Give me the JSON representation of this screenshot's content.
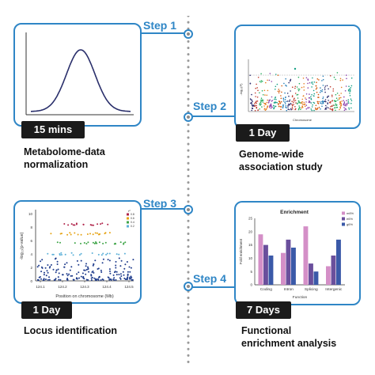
{
  "steps": [
    {
      "label": "Step 1",
      "duration": "15 mins",
      "caption_line1": "Metabolome-data",
      "caption_line2": "normalization"
    },
    {
      "label": "Step 2",
      "duration": "1 Day",
      "caption_line1": "Genome-wide",
      "caption_line2": "association study"
    },
    {
      "label": "Step 3",
      "duration": "1 Day",
      "caption_line1": "Locus identification",
      "caption_line2": ""
    },
    {
      "label": "Step 4",
      "duration": "7 Days",
      "caption_line1": "Functional",
      "caption_line2": "enrichment analysis"
    }
  ],
  "manhattan": {
    "ylabel": "-log₁₀(P)",
    "xlabel": "Chromosome"
  },
  "locus": {
    "ylabel": "-log₁₀(p-value)",
    "xlabel": "Position on chromosome (Mb)",
    "x_ticks": [
      "124.1",
      "124.2",
      "124.3",
      "124.4",
      "124.5"
    ],
    "y_ticks": [
      "0",
      "2",
      "4",
      "6",
      "8",
      "10"
    ],
    "legend_title": "r²",
    "legend": [
      "0.8",
      "0.6",
      "0.4",
      "0.2"
    ]
  },
  "chart_data": [
    {
      "type": "bar",
      "title": "Enrichment",
      "xlabel": "Function",
      "ylabel": "Fold enrichment",
      "categories": [
        "Coding",
        "Intron",
        "Splicing",
        "Intergenic"
      ],
      "ylim": [
        0,
        25
      ],
      "y_ticks": [
        "0",
        "5",
        "10",
        "15",
        "20",
        "25"
      ],
      "legend_placement": "top-right",
      "series": [
        {
          "name": "m6%",
          "color": "#d48fc7",
          "values": [
            19,
            12,
            22,
            7
          ]
        },
        {
          "name": "e6%",
          "color": "#6a4f9c",
          "values": [
            15,
            17,
            8,
            11
          ]
        },
        {
          "name": "g6%",
          "color": "#3a59a8",
          "values": [
            11,
            14,
            5,
            17
          ]
        }
      ]
    }
  ]
}
